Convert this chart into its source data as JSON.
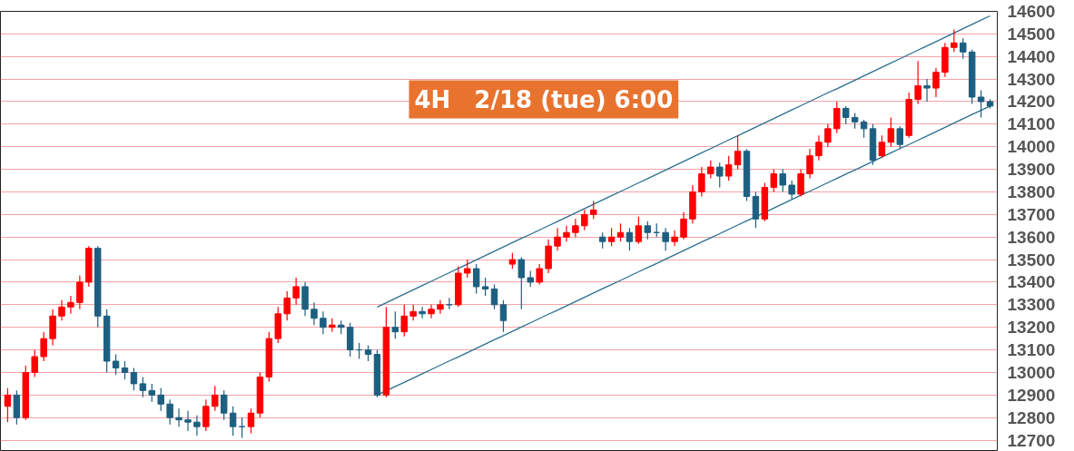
{
  "chart_data": {
    "type": "candlestick",
    "title": "4H　2/18 (tue) 6:00",
    "categories": [
      null,
      null,
      null,
      null,
      null,
      null,
      null,
      null,
      null,
      null,
      null,
      null,
      null,
      null,
      null,
      null,
      null,
      null,
      null,
      null,
      null,
      null,
      null,
      null,
      null,
      null,
      null,
      null,
      null,
      null,
      null,
      null,
      null,
      null,
      null,
      null,
      null,
      null,
      null,
      null,
      null,
      null,
      null,
      null,
      null,
      null,
      null,
      null,
      null,
      null,
      null,
      null,
      null,
      null,
      null,
      null,
      null,
      null,
      null,
      null,
      null,
      null,
      null,
      null,
      null,
      null,
      null,
      null,
      null,
      null,
      null,
      null,
      null,
      null,
      null,
      null,
      null,
      null,
      null,
      null,
      null,
      null,
      null,
      null,
      null,
      null,
      null,
      null,
      null,
      null,
      null,
      null,
      null,
      null,
      null,
      null,
      null,
      null,
      null,
      null,
      null,
      null,
      null,
      null,
      null,
      null,
      null,
      null,
      null,
      null
    ],
    "ohlc": [
      [
        12850,
        12930,
        12780,
        12900
      ],
      [
        12900,
        12920,
        12770,
        12800
      ],
      [
        12800,
        13030,
        12790,
        13000
      ],
      [
        13000,
        13100,
        12980,
        13070
      ],
      [
        13070,
        13180,
        13050,
        13150
      ],
      [
        13150,
        13280,
        13120,
        13250
      ],
      [
        13250,
        13320,
        13230,
        13290
      ],
      [
        13290,
        13340,
        13260,
        13310
      ],
      [
        13310,
        13430,
        13280,
        13400
      ],
      [
        13400,
        13560,
        13380,
        13550
      ],
      [
        13550,
        13560,
        13200,
        13250
      ],
      [
        13250,
        13280,
        13000,
        13050
      ],
      [
        13050,
        13080,
        12990,
        13020
      ],
      [
        13020,
        13050,
        12970,
        13000
      ],
      [
        13000,
        13020,
        12920,
        12950
      ],
      [
        12950,
        12980,
        12890,
        12920
      ],
      [
        12920,
        12950,
        12870,
        12900
      ],
      [
        12900,
        12930,
        12830,
        12860
      ],
      [
        12860,
        12880,
        12770,
        12800
      ],
      [
        12800,
        12840,
        12760,
        12790
      ],
      [
        12790,
        12830,
        12740,
        12780
      ],
      [
        12780,
        12810,
        12720,
        12760
      ],
      [
        12760,
        12880,
        12740,
        12850
      ],
      [
        12850,
        12940,
        12830,
        12900
      ],
      [
        12900,
        12920,
        12790,
        12820
      ],
      [
        12820,
        12850,
        12720,
        12760
      ],
      [
        12760,
        12800,
        12710,
        12760
      ],
      [
        12760,
        12840,
        12730,
        12820
      ],
      [
        12820,
        13000,
        12800,
        12980
      ],
      [
        12980,
        13180,
        12960,
        13150
      ],
      [
        13150,
        13290,
        13130,
        13260
      ],
      [
        13260,
        13360,
        13230,
        13330
      ],
      [
        13330,
        13420,
        13300,
        13380
      ],
      [
        13380,
        13400,
        13250,
        13280
      ],
      [
        13280,
        13310,
        13210,
        13240
      ],
      [
        13240,
        13270,
        13170,
        13200
      ],
      [
        13200,
        13240,
        13180,
        13210
      ],
      [
        13210,
        13230,
        13170,
        13200
      ],
      [
        13200,
        13220,
        13070,
        13100
      ],
      [
        13100,
        13130,
        13060,
        13100
      ],
      [
        13100,
        13120,
        13050,
        13080
      ],
      [
        13080,
        13100,
        12890,
        12900
      ],
      [
        12900,
        13290,
        12890,
        13200
      ],
      [
        13200,
        13270,
        13150,
        13180
      ],
      [
        13180,
        13300,
        13160,
        13250
      ],
      [
        13250,
        13300,
        13230,
        13270
      ],
      [
        13270,
        13290,
        13240,
        13260
      ],
      [
        13260,
        13300,
        13240,
        13280
      ],
      [
        13280,
        13320,
        13260,
        13300
      ],
      [
        13300,
        13330,
        13280,
        13300
      ],
      [
        13300,
        13470,
        13290,
        13440
      ],
      [
        13440,
        13500,
        13420,
        13460
      ],
      [
        13460,
        13480,
        13350,
        13380
      ],
      [
        13380,
        13420,
        13340,
        13370
      ],
      [
        13370,
        13390,
        13280,
        13300
      ],
      [
        13300,
        13320,
        13180,
        13230
      ],
      [
        13480,
        13530,
        13460,
        13500
      ],
      [
        13500,
        13510,
        13280,
        13420
      ],
      [
        13420,
        13450,
        13380,
        13400
      ],
      [
        13400,
        13480,
        13390,
        13460
      ],
      [
        13460,
        13590,
        13440,
        13560
      ],
      [
        13560,
        13640,
        13540,
        13600
      ],
      [
        13600,
        13650,
        13580,
        13620
      ],
      [
        13620,
        13680,
        13600,
        13650
      ],
      [
        13650,
        13720,
        13630,
        13700
      ],
      [
        13700,
        13760,
        13680,
        13720
      ],
      [
        13600,
        13620,
        13550,
        13580
      ],
      [
        13580,
        13640,
        13560,
        13600
      ],
      [
        13600,
        13660,
        13580,
        13620
      ],
      [
        13620,
        13640,
        13540,
        13580
      ],
      [
        13580,
        13690,
        13570,
        13650
      ],
      [
        13650,
        13670,
        13590,
        13620
      ],
      [
        13620,
        13660,
        13600,
        13620
      ],
      [
        13620,
        13640,
        13540,
        13580
      ],
      [
        13580,
        13630,
        13560,
        13600
      ],
      [
        13600,
        13710,
        13590,
        13680
      ],
      [
        13680,
        13830,
        13660,
        13800
      ],
      [
        13800,
        13910,
        13780,
        13880
      ],
      [
        13880,
        13940,
        13860,
        13910
      ],
      [
        13910,
        13930,
        13820,
        13870
      ],
      [
        13870,
        13960,
        13850,
        13920
      ],
      [
        13920,
        14050,
        13900,
        13980
      ],
      [
        13980,
        13990,
        13760,
        13780
      ],
      [
        13780,
        13800,
        13640,
        13680
      ],
      [
        13680,
        13840,
        13670,
        13820
      ],
      [
        13820,
        13900,
        13800,
        13880
      ],
      [
        13880,
        13900,
        13800,
        13830
      ],
      [
        13830,
        13850,
        13770,
        13790
      ],
      [
        13790,
        13900,
        13780,
        13880
      ],
      [
        13880,
        13990,
        13860,
        13960
      ],
      [
        13960,
        14050,
        13940,
        14020
      ],
      [
        14020,
        14100,
        14000,
        14080
      ],
      [
        14080,
        14200,
        14060,
        14170
      ],
      [
        14170,
        14180,
        14100,
        14130
      ],
      [
        14130,
        14150,
        14080,
        14110
      ],
      [
        14110,
        14120,
        14040,
        14080
      ],
      [
        14080,
        14100,
        13920,
        13940
      ],
      [
        13960,
        14050,
        13950,
        14020
      ],
      [
        14020,
        14130,
        14000,
        14080
      ],
      [
        14080,
        14090,
        13990,
        14010
      ],
      [
        14050,
        14240,
        14040,
        14210
      ],
      [
        14210,
        14380,
        14190,
        14270
      ],
      [
        14270,
        14300,
        14200,
        14260
      ],
      [
        14260,
        14350,
        14220,
        14330
      ],
      [
        14330,
        14460,
        14310,
        14440
      ],
      [
        14440,
        14520,
        14420,
        14460
      ],
      [
        14460,
        14480,
        14390,
        14420
      ],
      [
        14420,
        14430,
        14190,
        14220
      ],
      [
        14220,
        14250,
        14130,
        14200
      ],
      [
        14200,
        14210,
        14170,
        14180
      ]
    ],
    "colors": [
      "#ff0000",
      "#1d5f80",
      "#ff0000",
      "#ff0000",
      "#ff0000",
      "#ff0000",
      "#ff0000",
      "#ff0000",
      "#ff0000",
      "#ff0000",
      "#1d5f80",
      "#1d5f80",
      "#1d5f80",
      "#1d5f80",
      "#1d5f80",
      "#1d5f80",
      "#1d5f80",
      "#1d5f80",
      "#1d5f80",
      "#1d5f80",
      "#1d5f80",
      "#1d5f80",
      "#ff0000",
      "#ff0000",
      "#1d5f80",
      "#1d5f80",
      "#1d5f80",
      "#ff0000",
      "#ff0000",
      "#ff0000",
      "#ff0000",
      "#ff0000",
      "#ff0000",
      "#1d5f80",
      "#1d5f80",
      "#1d5f80",
      "#ff0000",
      "#1d5f80",
      "#1d5f80",
      "#1d5f80",
      "#1d5f80",
      "#1d5f80",
      "#ff0000",
      "#1d5f80",
      "#ff0000",
      "#ff0000",
      "#1d5f80",
      "#ff0000",
      "#ff0000",
      "#1d5f80",
      "#ff0000",
      "#ff0000",
      "#1d5f80",
      "#1d5f80",
      "#1d5f80",
      "#1d5f80",
      "#ff0000",
      "#1d5f80",
      "#1d5f80",
      "#ff0000",
      "#ff0000",
      "#ff0000",
      "#ff0000",
      "#ff0000",
      "#ff0000",
      "#ff0000",
      "#1d5f80",
      "#ff0000",
      "#ff0000",
      "#1d5f80",
      "#ff0000",
      "#1d5f80",
      "#1d5f80",
      "#1d5f80",
      "#ff0000",
      "#ff0000",
      "#ff0000",
      "#ff0000",
      "#ff0000",
      "#1d5f80",
      "#ff0000",
      "#ff0000",
      "#1d5f80",
      "#1d5f80",
      "#ff0000",
      "#ff0000",
      "#1d5f80",
      "#1d5f80",
      "#ff0000",
      "#ff0000",
      "#ff0000",
      "#ff0000",
      "#ff0000",
      "#1d5f80",
      "#1d5f80",
      "#1d5f80",
      "#1d5f80",
      "#ff0000",
      "#ff0000",
      "#1d5f80",
      "#ff0000",
      "#ff0000",
      "#1d5f80",
      "#ff0000",
      "#ff0000",
      "#ff0000",
      "#1d5f80",
      "#1d5f80",
      "#1d5f80",
      "#1d5f80"
    ],
    "series": [
      {
        "type": "line",
        "color": "#2a6f8f",
        "values": [
          null,
          null,
          null,
          null,
          null,
          null,
          null,
          null,
          null,
          null,
          null,
          null,
          null,
          null,
          null,
          null,
          null,
          null,
          null,
          null,
          null,
          null,
          null,
          null,
          null,
          null,
          null,
          null,
          null,
          null,
          null,
          null,
          null,
          null,
          null,
          null,
          null,
          null,
          null,
          null,
          null,
          13290,
          13309,
          13328,
          13347,
          13366,
          13385,
          13404,
          13423,
          13442,
          13461,
          13480,
          13499,
          13518,
          13537,
          13556,
          13575,
          13594,
          13612,
          13631,
          13650,
          13669,
          13688,
          13707,
          13726,
          13745,
          13764,
          13783,
          13802,
          13821,
          13840,
          13859,
          13878,
          13897,
          13916,
          13935,
          13954,
          13973,
          13992,
          14011,
          14030,
          14049,
          14068,
          14087,
          14106,
          14125,
          14144,
          14163,
          14182,
          14201,
          14220,
          14239,
          14257,
          14276,
          14295,
          14314,
          14333,
          14352,
          14371,
          14390,
          14409,
          14428,
          14447,
          14466,
          14485,
          14504,
          14523,
          14542,
          14561,
          14580
        ]
      },
      {
        "type": "line",
        "color": "#2a6f8f",
        "values": [
          null,
          null,
          null,
          null,
          null,
          null,
          null,
          null,
          null,
          null,
          null,
          null,
          null,
          null,
          null,
          null,
          null,
          null,
          null,
          null,
          null,
          null,
          null,
          null,
          null,
          null,
          null,
          null,
          null,
          null,
          null,
          null,
          null,
          null,
          null,
          null,
          null,
          null,
          null,
          null,
          null,
          12900,
          12919,
          12938,
          12956,
          12975,
          12994,
          13013,
          13032,
          13051,
          13069,
          13088,
          13107,
          13126,
          13145,
          13163,
          13182,
          13201,
          13220,
          13239,
          13258,
          13276,
          13295,
          13314,
          13333,
          13352,
          13371,
          13389,
          13408,
          13427,
          13446,
          13465,
          13483,
          13502,
          13521,
          13540,
          13559,
          13578,
          13596,
          13615,
          13634,
          13653,
          13672,
          13690,
          13709,
          13728,
          13747,
          13766,
          13785,
          13803,
          13822,
          13841,
          13860,
          13879,
          13897,
          13916,
          13935,
          13954,
          13973,
          13992,
          14010,
          14029,
          14048,
          14067,
          14086,
          14105,
          14124,
          14143,
          14161,
          14180
        ]
      }
    ],
    "ylim": [
      12650,
      14600
    ],
    "yticks": [
      12700,
      12800,
      12900,
      13000,
      13100,
      13200,
      13300,
      13400,
      13500,
      13600,
      13700,
      13800,
      13900,
      14000,
      14100,
      14200,
      14300,
      14400,
      14500,
      14600
    ],
    "grid": "y",
    "tick_labels": "y"
  }
}
